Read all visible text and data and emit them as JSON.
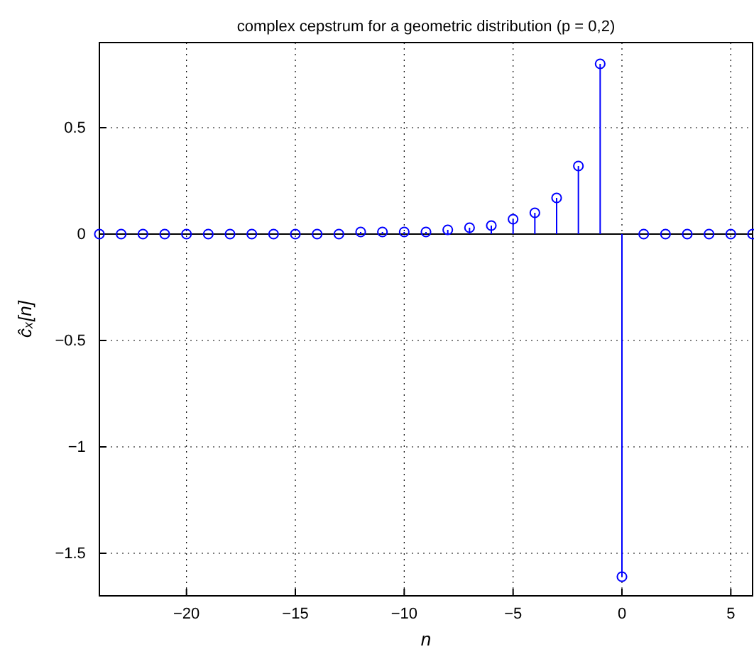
{
  "chart_data": {
    "type": "lollipop",
    "title": "complex cepstrum for a geometric distribution (p = 0,2)",
    "xlabel": "n",
    "ylabel": "ĉₓ[n]",
    "x": [
      -24,
      -23,
      -22,
      -21,
      -20,
      -19,
      -18,
      -17,
      -16,
      -15,
      -14,
      -13,
      -12,
      -11,
      -10,
      -9,
      -8,
      -7,
      -6,
      -5,
      -4,
      -3,
      -2,
      -1,
      0,
      1,
      2,
      3,
      4,
      5,
      6
    ],
    "values": [
      0,
      0,
      0,
      0,
      0,
      0,
      0,
      0,
      0,
      0,
      0,
      0,
      0.01,
      0.01,
      0.01,
      0.01,
      0.02,
      0.03,
      0.04,
      0.07,
      0.1,
      0.17,
      0.32,
      0.8,
      -1.61,
      0,
      0,
      0,
      0,
      0,
      0
    ],
    "color": "#0000ff",
    "marker": "circle",
    "grid": true,
    "xlim": [
      -24,
      6
    ],
    "xticks": [
      {
        "value": -20,
        "label": "−20"
      },
      {
        "value": -15,
        "label": "−15"
      },
      {
        "value": -10,
        "label": "−10"
      },
      {
        "value": -5,
        "label": "−5"
      },
      0,
      5
    ],
    "ylim": [
      -1.7,
      0.9
    ],
    "yticks": [
      {
        "value": -1.5,
        "label": "−1.5"
      },
      {
        "value": -1,
        "label": "−1"
      },
      {
        "value": -0.5,
        "label": "−0.5"
      },
      0,
      0.5
    ]
  }
}
